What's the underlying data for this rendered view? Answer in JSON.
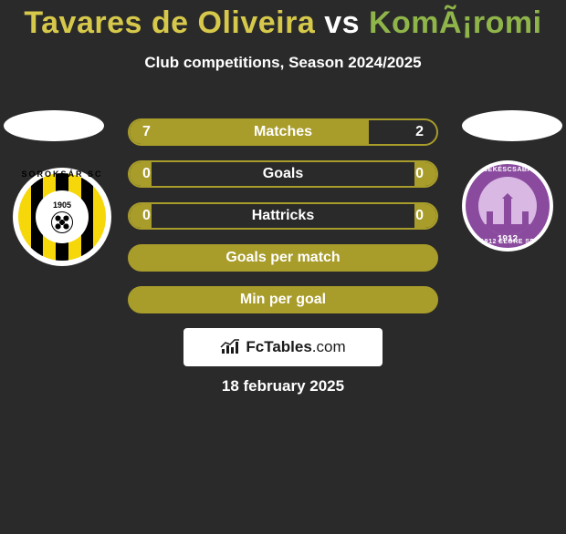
{
  "accent_color": "#a89c2a",
  "title_parts": {
    "p1": "Tavares de Oliveira",
    "p1_color": "#d6c84a",
    "vs": " vs ",
    "vs_color": "#ffffff",
    "p2": "KomÃ¡romi",
    "p2_color": "#8fb54a"
  },
  "subtitle": "Club competitions, Season 2024/2025",
  "bars": [
    {
      "label": "Matches",
      "left": "7",
      "right": "2",
      "left_pct": 78,
      "right_pct": 0
    },
    {
      "label": "Goals",
      "left": "0",
      "right": "0",
      "left_pct": 7,
      "right_pct": 7
    },
    {
      "label": "Hattricks",
      "left": "0",
      "right": "0",
      "left_pct": 7,
      "right_pct": 7
    },
    {
      "label": "Goals per match",
      "left": "",
      "right": "",
      "left_pct": 100,
      "right_pct": 0
    },
    {
      "label": "Min per goal",
      "left": "",
      "right": "",
      "left_pct": 100,
      "right_pct": 0
    }
  ],
  "brand": {
    "name_bold": "FcTables",
    "name_suffix": ".com"
  },
  "date": "18 february 2025",
  "left_club": {
    "year": "1905",
    "arc": "SOROKSÁR SC"
  },
  "right_club": {
    "top": "BÉKÉSCSABA",
    "bot": "1912 ELŐRE SE",
    "year": "1912"
  }
}
